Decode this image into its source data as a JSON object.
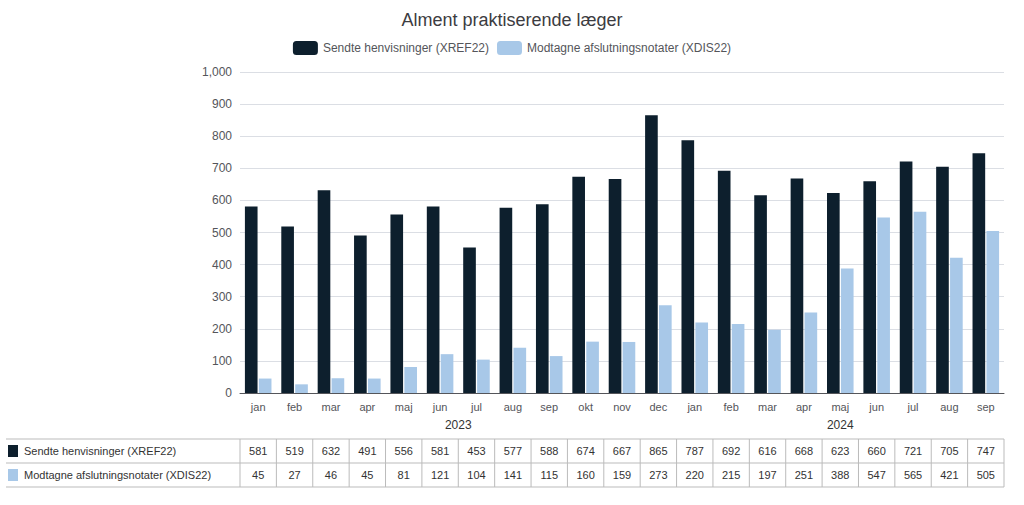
{
  "chart_data": {
    "type": "bar",
    "title": "Alment praktiserende læger",
    "categories": [
      "jan",
      "feb",
      "mar",
      "apr",
      "maj",
      "jun",
      "jul",
      "aug",
      "sep",
      "okt",
      "nov",
      "dec",
      "jan",
      "feb",
      "mar",
      "apr",
      "maj",
      "jun",
      "jul",
      "aug",
      "sep"
    ],
    "series": [
      {
        "name": "Sendte henvisninger (XREF22)",
        "color": "#0d1f2d",
        "values": [
          581,
          519,
          632,
          491,
          556,
          581,
          453,
          577,
          588,
          674,
          667,
          865,
          787,
          692,
          616,
          668,
          623,
          660,
          721,
          705,
          747
        ]
      },
      {
        "name": "Modtagne afslutningsnotater (XDIS22)",
        "color": "#a8c8e8",
        "values": [
          45,
          27,
          46,
          45,
          81,
          121,
          104,
          141,
          115,
          160,
          159,
          273,
          220,
          215,
          197,
          251,
          388,
          547,
          565,
          421,
          505
        ]
      }
    ],
    "annotations": [
      {
        "text": "2023",
        "first": 0,
        "last": 11
      },
      {
        "text": "2024",
        "first": 12,
        "last": 20
      }
    ],
    "ylim": [
      0,
      1000
    ],
    "yticks": [
      0,
      100,
      200,
      300,
      400,
      500,
      600,
      700,
      800,
      900,
      1000
    ],
    "grid": true,
    "legend": "top",
    "data_labels": true
  }
}
